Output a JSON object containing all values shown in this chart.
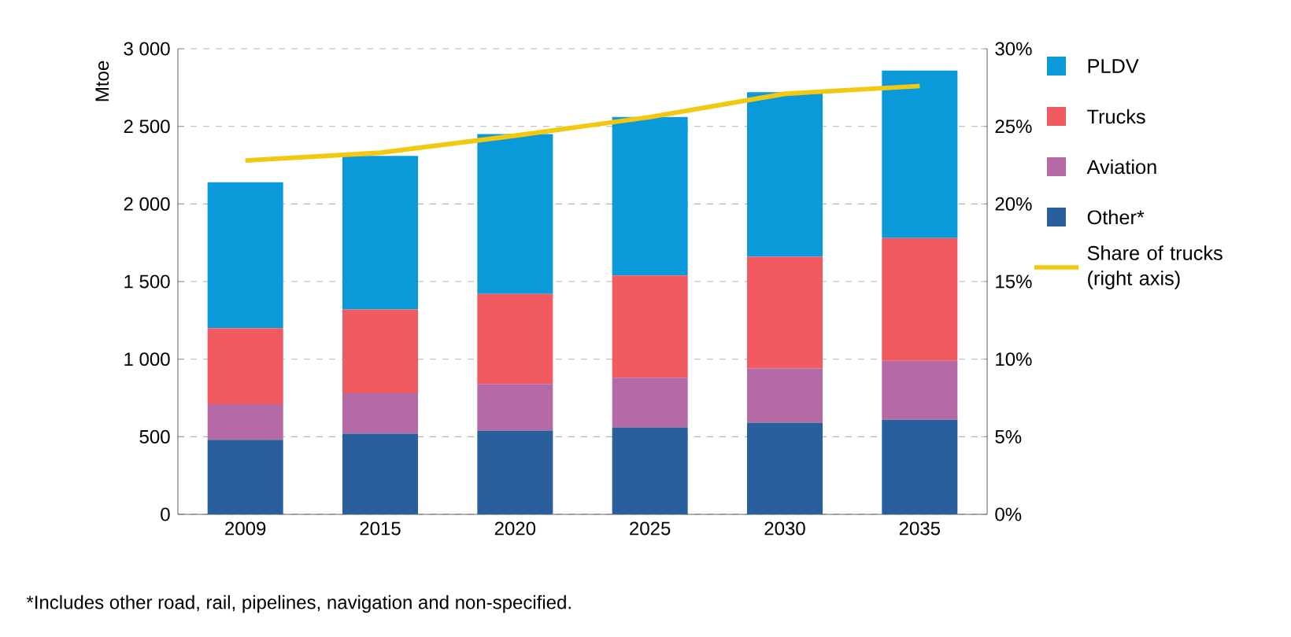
{
  "chart_data": {
    "type": "bar",
    "stacked": true,
    "ylabel": "Mtoe",
    "categories": [
      "2009",
      "2015",
      "2020",
      "2025",
      "2030",
      "2035"
    ],
    "series": [
      {
        "name": "Other*",
        "color": "#2a5f9e",
        "values": [
          480,
          520,
          540,
          560,
          590,
          610
        ]
      },
      {
        "name": "Aviation",
        "color": "#b56aa5",
        "values": [
          230,
          260,
          300,
          320,
          350,
          380
        ]
      },
      {
        "name": "Trucks",
        "color": "#f15a60",
        "values": [
          490,
          540,
          580,
          660,
          720,
          790
        ]
      },
      {
        "name": "PLDV",
        "color": "#0a9ad9",
        "values": [
          940,
          990,
          1030,
          1020,
          1060,
          1080
        ]
      },
      {
        "name": "Share of trucks (right axis)",
        "type": "line",
        "axis": "y2",
        "color": "#f2c811",
        "values": [
          22.8,
          23.3,
          24.4,
          25.6,
          27.1,
          27.6
        ]
      }
    ],
    "ylim": [
      0,
      3000
    ],
    "yticks": [
      0,
      500,
      {
        "value": 1000,
        "label": "1 000"
      },
      {
        "value": 1500,
        "label": "1 500"
      },
      {
        "value": 2000,
        "label": "2 000"
      },
      {
        "value": 2500,
        "label": "2 500"
      },
      {
        "value": 3000,
        "label": "3 000"
      }
    ],
    "y2lim": [
      0,
      30
    ],
    "y2ticks": [
      {
        "value": 0,
        "label": "0%"
      },
      {
        "value": 5,
        "label": "5%"
      },
      {
        "value": 10,
        "label": "10%"
      },
      {
        "value": 15,
        "label": "15%"
      },
      {
        "value": 20,
        "label": "20%"
      },
      {
        "value": 25,
        "label": "25%"
      },
      {
        "value": 30,
        "label": "30%"
      }
    ],
    "grid": "y",
    "legend": "right",
    "annotations": [
      "*Includes other road, rail, pipelines, navigation and non-specified."
    ]
  }
}
